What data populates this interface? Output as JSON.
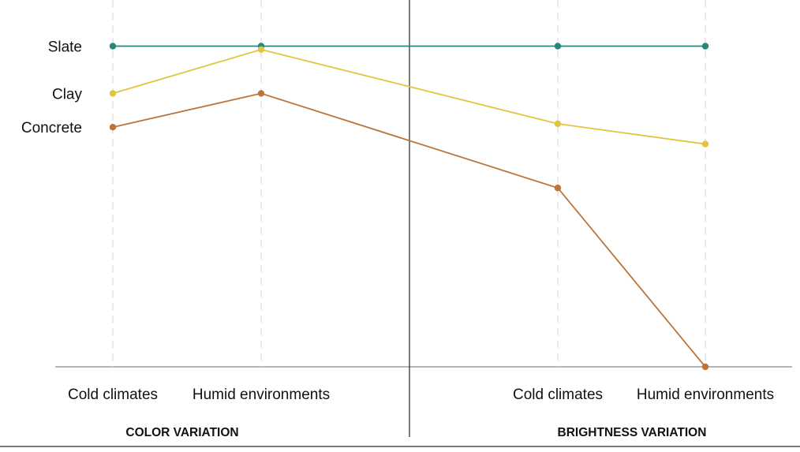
{
  "chart_data": {
    "type": "line",
    "groups": [
      {
        "label": "COLOR VARIATION",
        "categories": [
          "Cold climates",
          "Humid environments"
        ]
      },
      {
        "label": "BRIGHTNESS VARIATION",
        "categories": [
          "Cold climates",
          "Humid environments"
        ]
      }
    ],
    "series": [
      {
        "name": "Slate",
        "color": "#26877f",
        "values": [
          [
            9.5,
            9.5
          ],
          [
            9.5,
            9.5
          ]
        ]
      },
      {
        "name": "Clay",
        "color": "#e3c43f",
        "values": [
          [
            8.1,
            9.4
          ],
          [
            7.2,
            6.6
          ]
        ]
      },
      {
        "name": "Concrete",
        "color": "#bd7438",
        "values": [
          [
            7.1,
            8.1
          ],
          [
            5.3,
            0
          ]
        ]
      }
    ],
    "ylim": [
      0,
      10.4
    ],
    "grid": "vertical dashed",
    "legend": "left, labels inline with series start"
  }
}
